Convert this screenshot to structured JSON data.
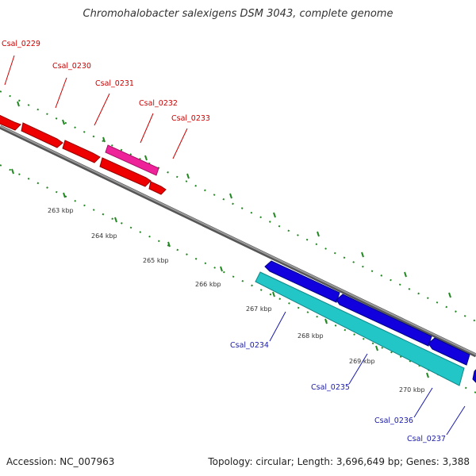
{
  "title": "Chromohalobacter salexigens DSM 3043, complete genome",
  "footer": {
    "accession": "Accession: NC_007963",
    "summary": "Topology: circular; Length: 3,696,649 bp; Genes: 3,388"
  },
  "colors": {
    "forward_gene": "#ee0000",
    "forward_highlight": "#ee2299",
    "reverse_gene": "#1100dd",
    "reverse_highlight": "#22c6c6",
    "backbone": "#888888",
    "tick": "#228822",
    "label_forward": "#cc0000",
    "label_reverse": "#1a1aaa"
  },
  "ticks": [
    "263 kbp",
    "264 kbp",
    "265 kbp",
    "266 kbp",
    "267 kbp",
    "268 kbp",
    "269 kbp",
    "270 kbp"
  ],
  "genes_forward": [
    {
      "label": "Csal_0229"
    },
    {
      "label": "Csal_0230"
    },
    {
      "label": "Csal_0231"
    },
    {
      "label": "Csal_0232",
      "highlight": true
    },
    {
      "label": "Csal_0233"
    }
  ],
  "genes_reverse": [
    {
      "label": "Csal_0234",
      "highlight": true
    },
    {
      "label": "Csal_0235"
    },
    {
      "label": "Csal_0236"
    },
    {
      "label": "Csal_0237"
    }
  ]
}
